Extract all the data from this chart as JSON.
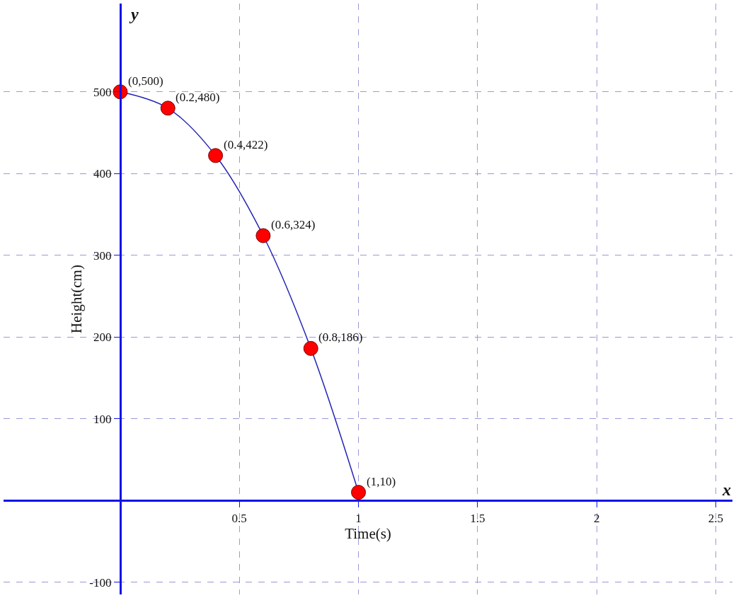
{
  "chart_data": {
    "type": "line",
    "xlabel": "Time(s)",
    "ylabel": "Height(cm)",
    "annotations": [
      "x",
      "y",
      {
        "text": "(0,500)",
        "x": 0,
        "y": 500
      },
      {
        "text": "(0.2,480)",
        "x": 0.2,
        "y": 480
      },
      {
        "text": "(0.4,422)",
        "x": 0.4,
        "y": 422
      },
      {
        "text": "(0.6,324)",
        "x": 0.6,
        "y": 324
      },
      {
        "text": "(0.8,186)",
        "x": 0.8,
        "y": 186
      },
      {
        "text": "(1,10)",
        "x": 1,
        "y": 10
      }
    ],
    "x": [
      0,
      0.2,
      0.4,
      0.6,
      0.8,
      1
    ],
    "series": [
      {
        "color": "#2323b4",
        "values": [
          500,
          480,
          422,
          324,
          186,
          10
        ]
      }
    ],
    "marker": "circle",
    "line_style": "solid",
    "grid": true,
    "legend": false,
    "xlim": [
      -0.49,
      2.57
    ],
    "ylim": [
      -115,
      608
    ],
    "xticks": [
      0.5,
      1,
      1.5,
      2,
      2.5
    ],
    "yticks": [
      -100,
      100,
      200,
      300,
      400,
      500
    ]
  }
}
